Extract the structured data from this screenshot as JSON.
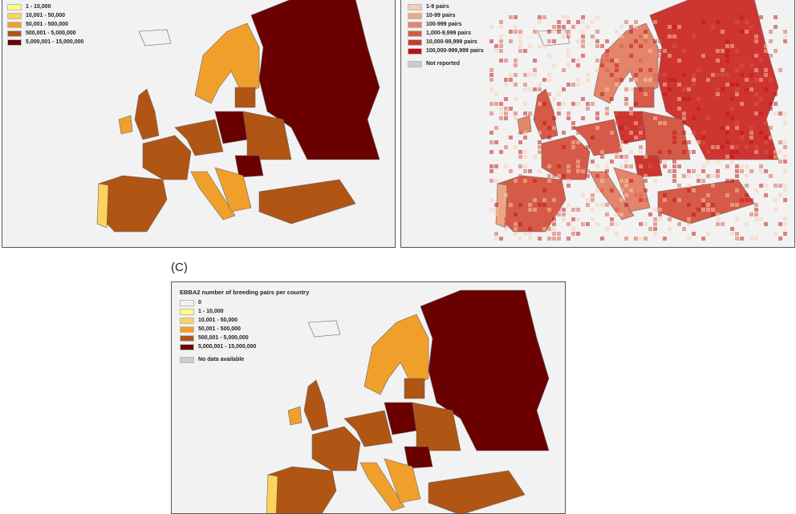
{
  "panel_a": {
    "legend": [
      {
        "label": "1 - 10,000",
        "color": "#ffff80"
      },
      {
        "label": "10,001 - 50,000",
        "color": "#fdd35c"
      },
      {
        "label": "50,001 - 500,000",
        "color": "#f0a02a"
      },
      {
        "label": "500,001 - 5,000,000",
        "color": "#b05514"
      },
      {
        "label": "5,000,001 - 15,000,000",
        "color": "#6b0000"
      }
    ]
  },
  "panel_b": {
    "legend": [
      {
        "label": "1-9 pairs",
        "color": "#f8cdb0"
      },
      {
        "label": "10-99 pairs",
        "color": "#efa584"
      },
      {
        "label": "100-999 pairs",
        "color": "#e4846a"
      },
      {
        "label": "1,000-9,999 pairs",
        "color": "#d65a48"
      },
      {
        "label": "10,000-99,999 pairs",
        "color": "#cf3530"
      },
      {
        "label": "100,000-999,999 pairs",
        "color": "#c40d10"
      }
    ],
    "not_reported": {
      "label": "Not reported",
      "color": "#cccccc"
    }
  },
  "panel_c": {
    "label": "(C)",
    "title": "EBBA2 number of breeding pairs per country",
    "legend": [
      {
        "label": "0",
        "color": "#f2f2f2"
      },
      {
        "label": "1 - 10,000",
        "color": "#ffff80"
      },
      {
        "label": "10,001 - 50,000",
        "color": "#fdd35c"
      },
      {
        "label": "50,001 - 500,000",
        "color": "#f0a02a"
      },
      {
        "label": "500,001 - 5,000,000",
        "color": "#b05514"
      },
      {
        "label": "5,000,001 - 15,000,000",
        "color": "#6b0000"
      }
    ],
    "no_data": {
      "label": "No data available",
      "color": "#cccccc"
    }
  }
}
